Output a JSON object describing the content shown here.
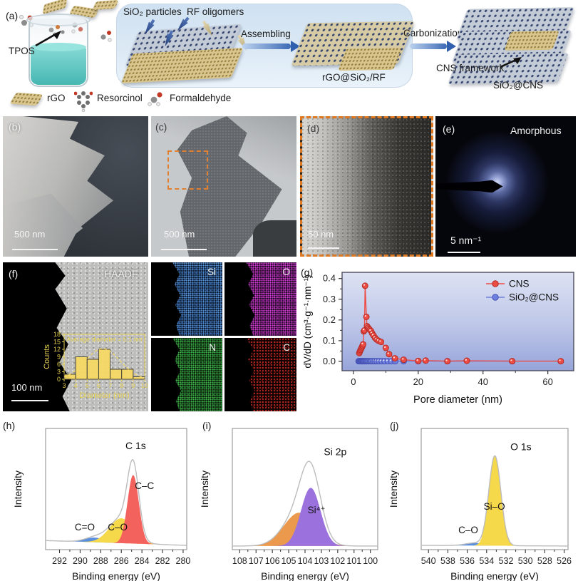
{
  "panel_a": {
    "label": "(a)",
    "tpos_label": "TPOS",
    "sio2_particles_label": "SiO₂ particles",
    "rf_oligomers_label": "RF oligomers",
    "assembling_label": "Assembling",
    "carbonization_label": "Carbonization",
    "rgo_sio2_rf_label": "rGO@SiO₂/RF",
    "cns_framework_label": "CNS framework",
    "sio2_cns_label": "SiO₂@CNS",
    "legend": {
      "rgo": "rGO",
      "resorcinol": "Resorcinol",
      "formaldehyde": "Formaldehyde"
    }
  },
  "panel_b": {
    "label": "(b)",
    "scale_bar": "500 nm"
  },
  "panel_c": {
    "label": "(c)",
    "scale_bar": "500 nm"
  },
  "panel_d": {
    "label": "(d)",
    "scale_bar": "50 nm"
  },
  "panel_e": {
    "label": "(e)",
    "annotation": "Amorphous",
    "scale_bar": "5 nm⁻¹"
  },
  "panel_f": {
    "label": "(f)",
    "annotation": "HAADF",
    "scale_bar": "100 nm"
  },
  "eds_maps": {
    "si": {
      "label": "Si",
      "color": "#3a7bd5"
    },
    "o": {
      "label": "O",
      "color": "#d52ad5"
    },
    "n": {
      "label": "N",
      "color": "#2fae3a"
    },
    "c": {
      "label": "C",
      "color": "#b01818"
    }
  },
  "panel_g": {
    "label": "(g)"
  },
  "panel_h": {
    "label": "(h)"
  },
  "panel_i": {
    "label": "(i)"
  },
  "panel_j": {
    "label": "(j)"
  },
  "chart_data": [
    {
      "id": "particle_size_histogram",
      "type": "bar",
      "title": "Average diameter = 6.1 nm",
      "xlabel": "Diameter (nm)",
      "ylabel": "Counts",
      "bin_edges": [
        3,
        4,
        5,
        6,
        7,
        8,
        9,
        10
      ],
      "values": [
        2,
        9,
        8,
        12,
        4,
        4,
        1
      ],
      "xticks": [
        3,
        4,
        5,
        6,
        7,
        8,
        9,
        10
      ],
      "yticks": [
        0,
        3,
        6,
        9,
        12,
        15,
        18
      ],
      "ylim": [
        0,
        18
      ],
      "fit_curve": {
        "center": 6.35,
        "sigma": 1.5,
        "amp": 12.3
      },
      "bar_color": "#f5d964",
      "bar_edge": "#4a4636",
      "axis_color": "#e5d052"
    },
    {
      "id": "pore_size_distribution",
      "type": "line",
      "xlabel": "Pore diameter (nm)",
      "ylabel": "dV/dD (cm³·g⁻¹·nm⁻¹)",
      "xticks": [
        0,
        20,
        40,
        60
      ],
      "yticks": [
        0.0,
        0.1,
        0.2,
        0.3,
        0.4
      ],
      "xlim": [
        -3.5,
        68
      ],
      "ylim": [
        -0.045,
        0.43
      ],
      "legend_position": "top-right",
      "series": [
        {
          "name": "SiO₂@CNS",
          "color": "#6f7fe0",
          "edge": "#4753b5",
          "x": [
            1.6,
            1.8,
            2.0,
            2.2,
            2.4,
            2.6,
            2.8,
            3.0,
            3.2,
            3.5,
            3.8,
            4.1,
            4.4,
            4.8,
            5.2,
            5.6,
            6.1,
            6.6,
            7.2,
            7.9,
            8.7,
            9.6,
            10.6,
            11.7,
            12.9,
            15.5,
            20.0,
            29.0,
            49.0
          ],
          "y": [
            0.001,
            0.001,
            0.001,
            0.001,
            0.001,
            0.001,
            0.001,
            0.001,
            0.001,
            0.001,
            0.001,
            0.001,
            0.001,
            0.001,
            0.001,
            0.001,
            0.001,
            0.001,
            0.001,
            0.001,
            0.001,
            0.001,
            0.001,
            0.001,
            0.001,
            0.001,
            0.001,
            0.001,
            0.001
          ]
        },
        {
          "name": "CNS",
          "color": "#ed4c45",
          "edge": "#b52c27",
          "x": [
            1.8,
            2.0,
            2.2,
            2.4,
            2.6,
            2.8,
            3.0,
            3.2,
            3.4,
            3.6,
            4.0,
            4.2,
            4.5,
            4.8,
            5.1,
            5.4,
            5.8,
            6.2,
            6.7,
            7.2,
            7.8,
            8.5,
            10.0,
            11.0,
            12.8,
            15.5,
            20.0,
            22.3,
            29.0,
            35.0,
            49.0,
            64.0
          ],
          "y": [
            0.04,
            0.048,
            0.055,
            0.062,
            0.068,
            0.075,
            0.082,
            0.145,
            0.15,
            0.365,
            0.215,
            0.17,
            0.163,
            0.157,
            0.152,
            0.147,
            0.135,
            0.125,
            0.113,
            0.105,
            0.099,
            0.094,
            0.065,
            0.035,
            0.015,
            0.008,
            0.002,
            0.004,
            0.001,
            0.003,
            0.001,
            0.001
          ]
        }
      ],
      "legend_order": [
        "CNS",
        "SiO₂@CNS"
      ]
    },
    {
      "id": "xps_c1s",
      "type": "area",
      "peak_label": "C 1s",
      "peak_label_x": 285.6,
      "peak_label_y": 0.83,
      "xlabel": "Binding energy (eV)",
      "ylabel": "Intensity",
      "xticks": [
        292,
        290,
        288,
        286,
        284,
        282,
        280
      ],
      "xlim": [
        293.35,
        279.65
      ],
      "baseline": [
        0.075,
        0.035
      ],
      "envelope_color": "#bcbcbc",
      "components": [
        {
          "label": "C=O",
          "center": 288.6,
          "sigma": 0.95,
          "amp": 0.038,
          "color": "#5a8fdf",
          "label_x": 289.55,
          "label_y": 0.16
        },
        {
          "label": "C–O",
          "center": 286.0,
          "sigma": 1.15,
          "amp": 0.205,
          "color": "#f6d84b",
          "label_x": 286.35,
          "label_y": 0.16
        },
        {
          "label": "C–C",
          "center": 284.85,
          "sigma": 0.55,
          "amp": 0.565,
          "color": "#f4625e",
          "label_x": 283.75,
          "label_y": 0.5
        }
      ]
    },
    {
      "id": "xps_si2p",
      "type": "area",
      "peak_label": "Si 2p",
      "peak_label_x": 102.85,
      "peak_label_y": 0.78,
      "xlabel": "Binding energy (eV)",
      "ylabel": "Intensity",
      "xticks": [
        108,
        107,
        106,
        105,
        104,
        103,
        102,
        101,
        100
      ],
      "xlim": [
        108.45,
        99.55
      ],
      "baseline": [
        0.03,
        0.03
      ],
      "envelope_color": "#bcbcbc",
      "components": [
        {
          "label": "",
          "center": 104.35,
          "sigma": 0.95,
          "amp": 0.275,
          "color": "#eb9a4d",
          "label_x": 0,
          "label_y": 0
        },
        {
          "label": "Si⁴⁺",
          "center": 103.65,
          "sigma": 0.6,
          "amp": 0.48,
          "color": "#9b72dd",
          "label_x": 103.3,
          "label_y": 0.3
        }
      ]
    },
    {
      "id": "xps_o1s",
      "type": "area",
      "peak_label": "O 1s",
      "peak_label_x": 531.55,
      "peak_label_y": 0.82,
      "xlabel": "Binding energy (eV)",
      "ylabel": "Intensity",
      "xticks": [
        540,
        538,
        536,
        534,
        532,
        530,
        528,
        526
      ],
      "xlim": [
        540.75,
        525.6
      ],
      "baseline": [
        0.035,
        0.03
      ],
      "envelope_color": "#bcbcbc",
      "components": [
        {
          "label": "C–O",
          "center": 535.2,
          "sigma": 1.0,
          "amp": 0.022,
          "color": "#5a8fdf",
          "label_x": 535.9,
          "label_y": 0.135
        },
        {
          "label": "Si–O",
          "center": 533.15,
          "sigma": 0.62,
          "amp": 0.74,
          "color": "#f6d84b",
          "label_x": 533.2,
          "label_y": 0.33
        }
      ]
    }
  ]
}
